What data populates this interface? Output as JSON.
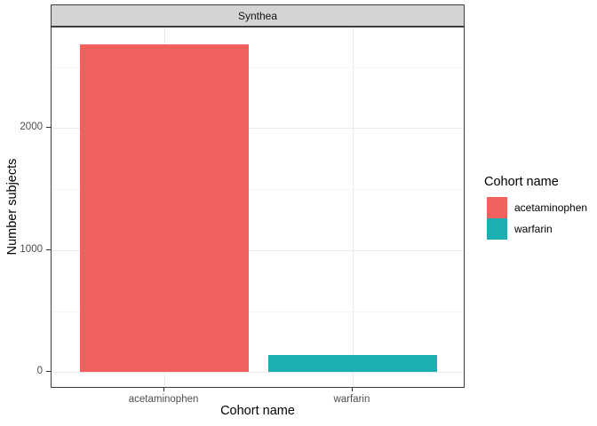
{
  "chart_data": {
    "type": "bar",
    "facet_label": "Synthea",
    "categories": [
      "acetaminophen",
      "warfarin"
    ],
    "values": [
      2690,
      140
    ],
    "colors": [
      "#F2605D",
      "#1BAFB1"
    ],
    "xlabel": "Cohort name",
    "ylabel": "Number subjects",
    "y_ticks": [
      0,
      1000,
      2000
    ],
    "y_minor_ticks": [
      500,
      1500,
      2500
    ],
    "ylim": [
      -135,
      2825
    ],
    "bar_rel_width": 0.9,
    "grid": true,
    "legend": {
      "title": "Cohort name",
      "position": "right",
      "entries": [
        {
          "label": "acetaminophen",
          "color": "#F2605D"
        },
        {
          "label": "warfarin",
          "color": "#1BAFB1"
        }
      ]
    },
    "style": {
      "strip_bg": "#d4d4d4",
      "border": "#3d3d3d",
      "grid_major": "#ebebeb",
      "grid_minor": "#f6f6f6",
      "tick_label_color": "#4d4d4d"
    }
  }
}
